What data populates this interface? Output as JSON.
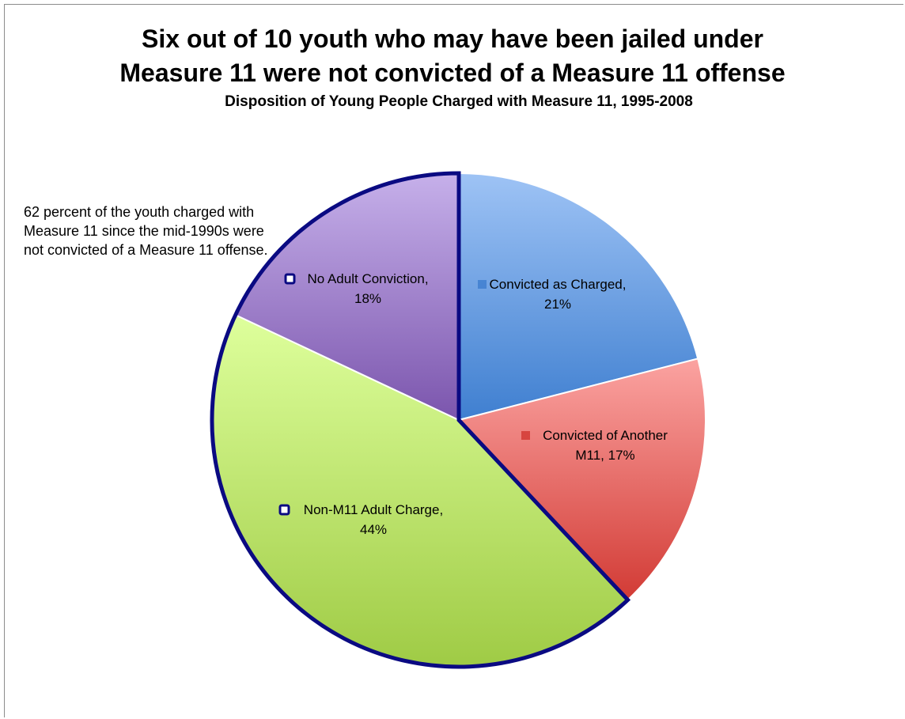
{
  "chart_data": {
    "type": "pie",
    "title_lines": [
      "Six out of 10 youth who may have been jailed under",
      "Measure 11 were not convicted of a Measure 11 offense"
    ],
    "subtitle": "Disposition of Young People Charged with Measure 11, 1995-2008",
    "annotation": "62 percent of the youth charged with Measure 11 since the mid-1990s were not convicted of a Measure 11 offense.",
    "slices": [
      {
        "name": "Convicted as Charged",
        "value": 21,
        "label": "Convicted as Charged,",
        "pct_label": "21%",
        "color_top": "#9ec3f5",
        "color_bottom": "#3f7fd0",
        "highlighted": false
      },
      {
        "name": "Convicted of Another M11",
        "value": 17,
        "label": "Convicted of Another",
        "pct_label": "M11, 17%",
        "color_top": "#fba3a1",
        "color_bottom": "#d23b35",
        "highlighted": false
      },
      {
        "name": "Non-M11 Adult Charge",
        "value": 44,
        "label": "Non-M11 Adult Charge,",
        "pct_label": "44%",
        "color_top": "#deff9c",
        "color_bottom": "#9fcb45",
        "highlighted": true
      },
      {
        "name": "No Adult Conviction",
        "value": 18,
        "label": "No Adult Conviction,",
        "pct_label": "18%",
        "color_top": "#c6b0ea",
        "color_bottom": "#7b55ad",
        "highlighted": true
      }
    ],
    "highlight_border_color": "#0a0a82"
  }
}
